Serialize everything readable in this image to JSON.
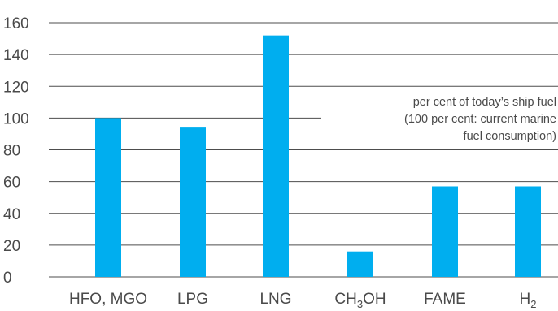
{
  "chart_data": {
    "type": "bar",
    "categories": [
      {
        "label": "HFO, MGO"
      },
      {
        "label": "LPG"
      },
      {
        "label": "LNG"
      },
      {
        "label": "CH",
        "sub": "3",
        "tail": "OH"
      },
      {
        "label": "FAME"
      },
      {
        "label": "H",
        "sub": "2"
      }
    ],
    "values": [
      100,
      94,
      152,
      16,
      57,
      57
    ],
    "ylim": [
      0,
      160
    ],
    "yticks": [
      0,
      20,
      40,
      60,
      80,
      100,
      120,
      140,
      160
    ],
    "annotation": [
      "per cent of today’s ship fuel",
      "(100 per cent: current marine",
      "fuel consumption)"
    ],
    "grid": true,
    "bar_color": "#00aeef",
    "grid_color": "#4d4d4d"
  }
}
